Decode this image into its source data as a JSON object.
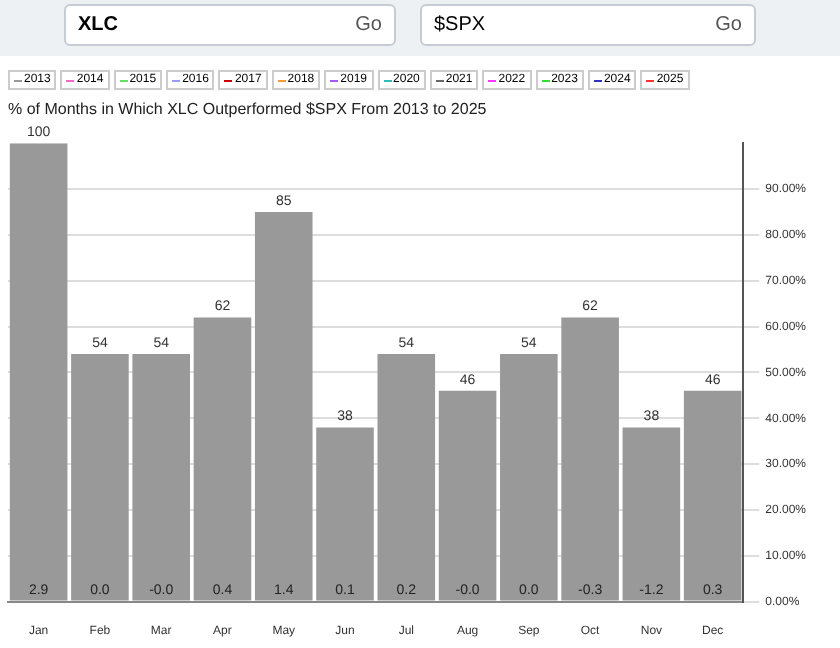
{
  "chart_data": {
    "type": "bar",
    "title": "% of Months in Which XLC Outperformed $SPX From 2013 to 2025",
    "categories": [
      "Jan",
      "Feb",
      "Mar",
      "Apr",
      "May",
      "Jun",
      "Jul",
      "Aug",
      "Sep",
      "Oct",
      "Nov",
      "Dec"
    ],
    "values": [
      100,
      54,
      54,
      62,
      85,
      38,
      54,
      46,
      54,
      62,
      38,
      46
    ],
    "color": "#999999",
    "data_labels": true,
    "grid": "y",
    "ylim": [
      0,
      100
    ],
    "yticks": [
      {
        "value": 0,
        "label": "0.00%"
      },
      {
        "value": 10,
        "label": "10.00%"
      },
      {
        "value": 20,
        "label": "20.00%"
      },
      {
        "value": 30,
        "label": "30.00%"
      },
      {
        "value": 40,
        "label": "40.00%"
      },
      {
        "value": 50,
        "label": "50.00%"
      },
      {
        "value": 60,
        "label": "60.00%"
      },
      {
        "value": 70,
        "label": "70.00%"
      },
      {
        "value": 80,
        "label": "80.00%"
      },
      {
        "value": 90,
        "label": "90.00%"
      }
    ],
    "annotations": [
      "XLC",
      "Go",
      "$SPX",
      "Go",
      "2013",
      "2014",
      "2015",
      "2016",
      "2017",
      "2018",
      "2019",
      "2020",
      "2021",
      "2022",
      "2023",
      "2024",
      "2025",
      {
        "text": "2.9",
        "x": "Jan",
        "y": 0
      },
      {
        "text": "0.0",
        "x": "Feb",
        "y": 0
      },
      {
        "text": "-0.0",
        "x": "Mar",
        "y": 0
      },
      {
        "text": "0.4",
        "x": "Apr",
        "y": 0
      },
      {
        "text": "1.4",
        "x": "May",
        "y": 0
      },
      {
        "text": "0.1",
        "x": "Jun",
        "y": 0
      },
      {
        "text": "0.2",
        "x": "Jul",
        "y": 0
      },
      {
        "text": "-0.0",
        "x": "Aug",
        "y": 0
      },
      {
        "text": "0.0",
        "x": "Sep",
        "y": 0
      },
      {
        "text": "-0.3",
        "x": "Oct",
        "y": 0
      },
      {
        "text": "-1.2",
        "x": "Nov",
        "y": 0
      },
      {
        "text": "0.3",
        "x": "Dec",
        "y": 0
      }
    ]
  }
}
